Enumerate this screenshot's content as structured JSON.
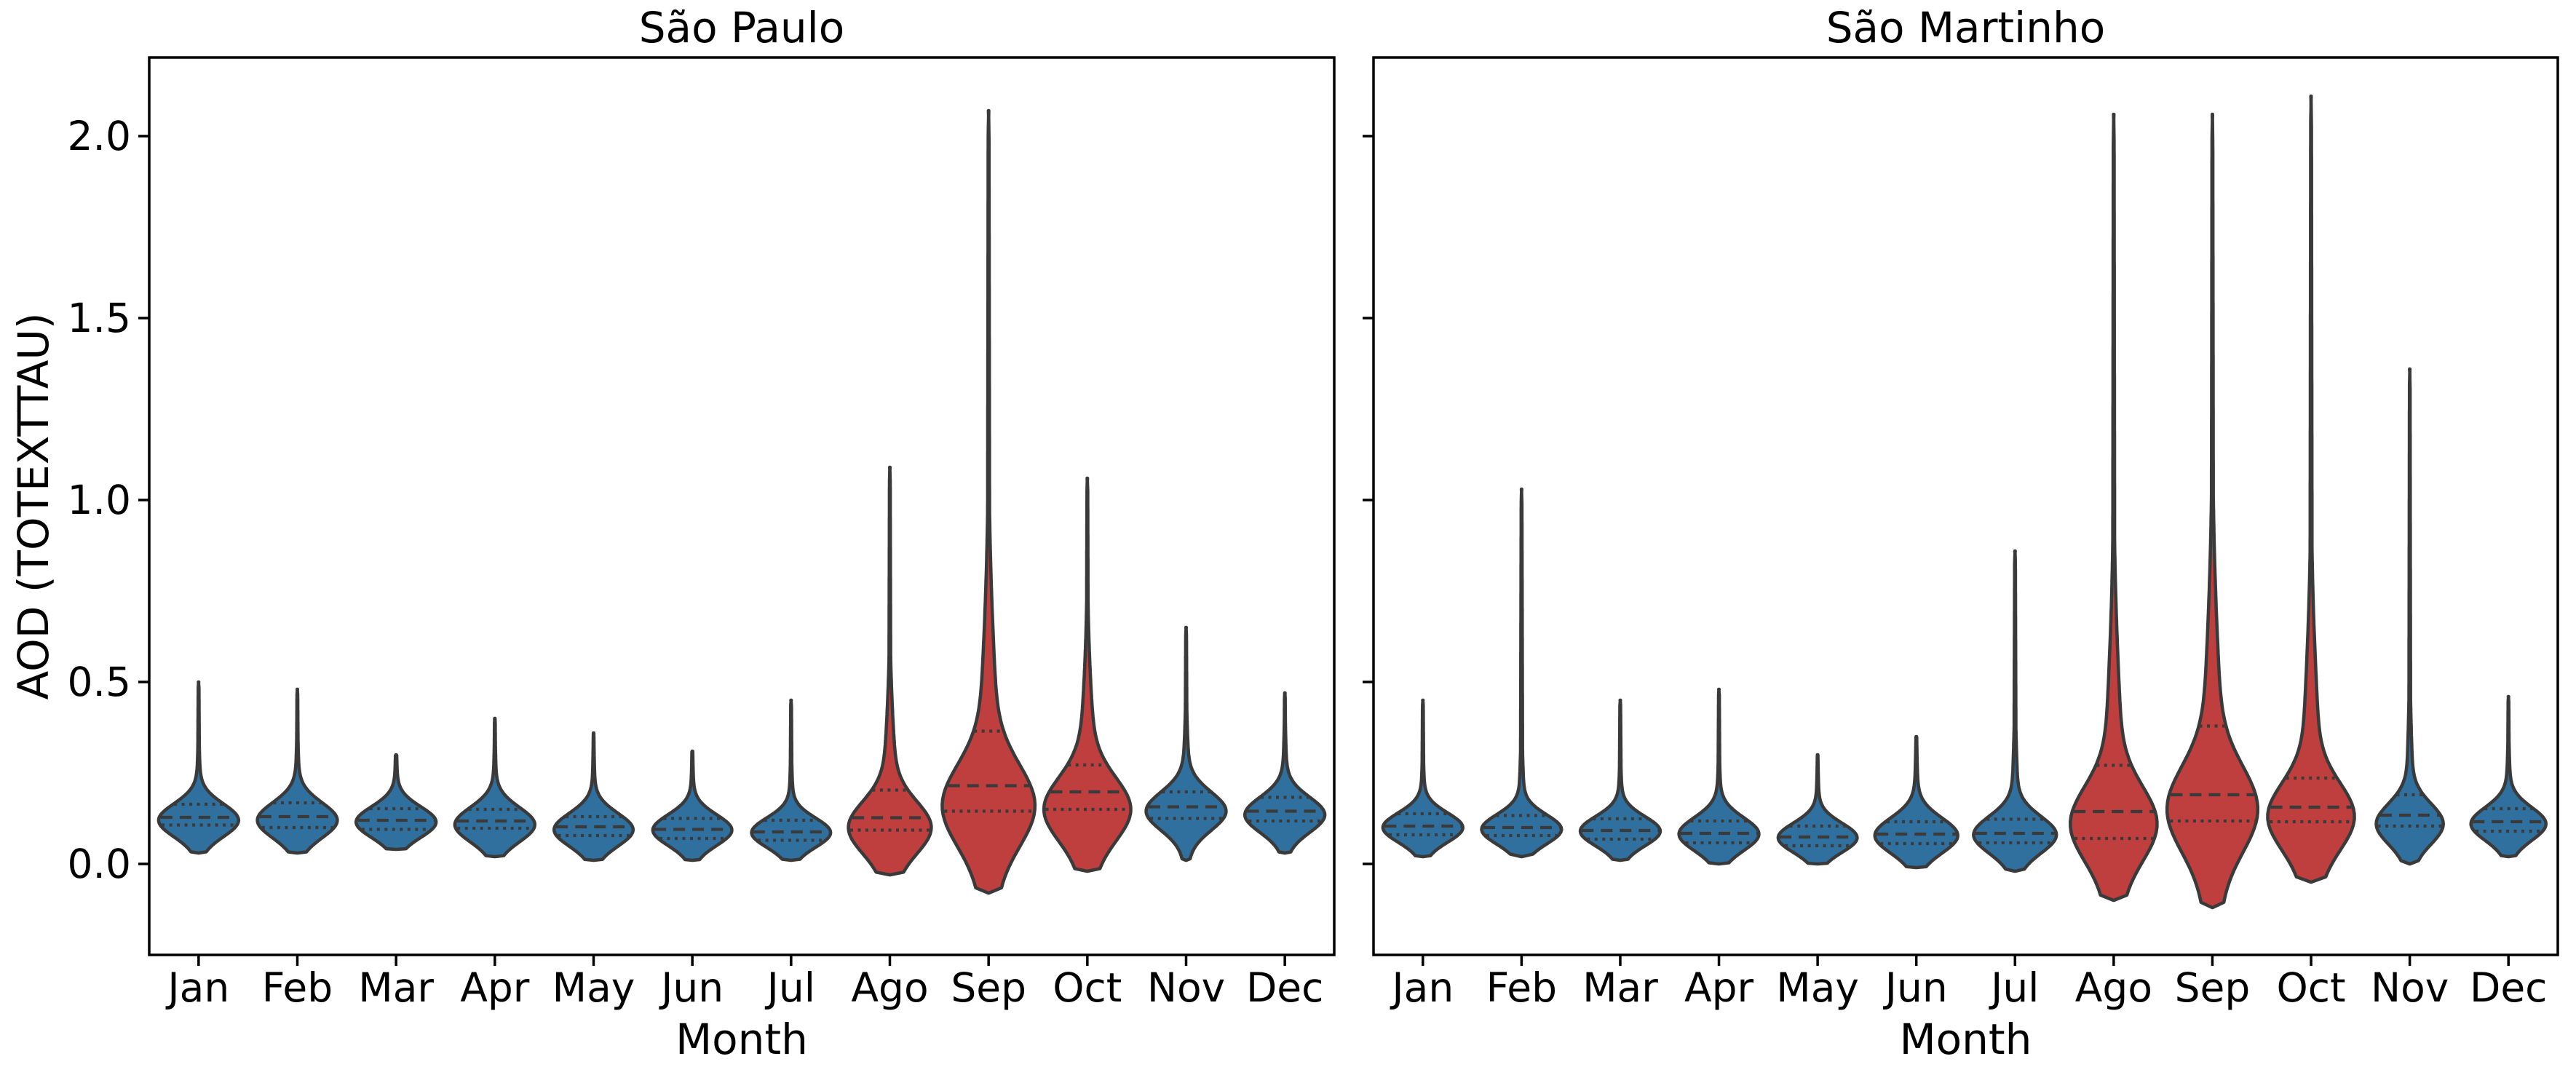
{
  "figure": {
    "ylabel": "AOD (TOTEXTTAU)",
    "xlabel": "Month",
    "ytick_labels": [
      "0.0",
      "0.5",
      "1.0",
      "1.5",
      "2.0"
    ],
    "colors": {
      "regular_violin": "#2f709e",
      "burning_season_violin": "#bf3e3e",
      "violin_outline": "#3a3a3a",
      "axis": "#000000",
      "background": "#ffffff"
    }
  },
  "chart_data": {
    "type": "violin",
    "title": "",
    "xlabel": "Month",
    "ylabel": "AOD (TOTEXTTAU)",
    "categories": [
      "Jan",
      "Feb",
      "Mar",
      "Apr",
      "May",
      "Jun",
      "Jul",
      "Ago",
      "Sep",
      "Oct",
      "Nov",
      "Dec"
    ],
    "ytick_values": [
      0.0,
      0.5,
      1.0,
      1.5,
      2.0
    ],
    "ylim": [
      -0.25,
      2.216
    ],
    "grid": false,
    "inner_style": "quartile-lines (q1 dotted, median dashed, q3 dotted)",
    "subplots": [
      {
        "title": "São Paulo",
        "violins": [
          {
            "month": "Jan",
            "color": "regular",
            "min": 0.03,
            "max": 0.5,
            "mode": 0.12,
            "sigma": 0.045,
            "q1": 0.107,
            "median": 0.128,
            "q3": 0.164,
            "halfwidth": 0.405,
            "tail_amp": 0.06,
            "tail_sigma_mult": 3.0
          },
          {
            "month": "Feb",
            "color": "regular",
            "min": 0.03,
            "max": 0.48,
            "mode": 0.12,
            "sigma": 0.048,
            "q1": 0.1,
            "median": 0.13,
            "q3": 0.168,
            "halfwidth": 0.405,
            "tail_amp": 0.06,
            "tail_sigma_mult": 3.0
          },
          {
            "month": "Mar",
            "color": "regular",
            "min": 0.04,
            "max": 0.3,
            "mode": 0.115,
            "sigma": 0.042,
            "q1": 0.095,
            "median": 0.12,
            "q3": 0.152,
            "halfwidth": 0.405,
            "tail_amp": 0.05,
            "tail_sigma_mult": 3.0
          },
          {
            "month": "Apr",
            "color": "regular",
            "min": 0.02,
            "max": 0.4,
            "mode": 0.108,
            "sigma": 0.047,
            "q1": 0.098,
            "median": 0.118,
            "q3": 0.15,
            "halfwidth": 0.405,
            "tail_amp": 0.05,
            "tail_sigma_mult": 3.0
          },
          {
            "month": "May",
            "color": "regular",
            "min": 0.01,
            "max": 0.36,
            "mode": 0.094,
            "sigma": 0.045,
            "q1": 0.078,
            "median": 0.102,
            "q3": 0.13,
            "halfwidth": 0.4,
            "tail_amp": 0.05,
            "tail_sigma_mult": 3.0
          },
          {
            "month": "Jun",
            "color": "regular",
            "min": 0.01,
            "max": 0.31,
            "mode": 0.093,
            "sigma": 0.042,
            "q1": 0.07,
            "median": 0.095,
            "q3": 0.125,
            "halfwidth": 0.4,
            "tail_amp": 0.05,
            "tail_sigma_mult": 3.0
          },
          {
            "month": "Jul",
            "color": "regular",
            "min": 0.01,
            "max": 0.45,
            "mode": 0.086,
            "sigma": 0.04,
            "q1": 0.065,
            "median": 0.088,
            "q3": 0.12,
            "halfwidth": 0.4,
            "tail_amp": 0.06,
            "tail_sigma_mult": 3.2
          },
          {
            "month": "Ago",
            "color": "burning",
            "min": -0.03,
            "max": 1.09,
            "mode": 0.1,
            "sigma": 0.07,
            "q1": 0.093,
            "median": 0.127,
            "q3": 0.203,
            "halfwidth": 0.42,
            "tail_amp": 0.22,
            "tail_sigma_mult": 3.2
          },
          {
            "month": "Sep",
            "color": "burning",
            "min": -0.08,
            "max": 2.07,
            "mode": 0.16,
            "sigma": 0.11,
            "q1": 0.145,
            "median": 0.215,
            "q3": 0.365,
            "halfwidth": 0.47,
            "tail_amp": 0.28,
            "tail_sigma_mult": 3.4
          },
          {
            "month": "Oct",
            "color": "burning",
            "min": -0.02,
            "max": 1.06,
            "mode": 0.15,
            "sigma": 0.085,
            "q1": 0.15,
            "median": 0.198,
            "q3": 0.272,
            "halfwidth": 0.44,
            "tail_amp": 0.25,
            "tail_sigma_mult": 3.0
          },
          {
            "month": "Nov",
            "color": "regular",
            "min": 0.01,
            "max": 0.65,
            "mode": 0.145,
            "sigma": 0.052,
            "q1": 0.125,
            "median": 0.157,
            "q3": 0.198,
            "halfwidth": 0.405,
            "tail_amp": 0.1,
            "tail_sigma_mult": 3.0
          },
          {
            "month": "Dec",
            "color": "regular",
            "min": 0.03,
            "max": 0.47,
            "mode": 0.135,
            "sigma": 0.048,
            "q1": 0.118,
            "median": 0.145,
            "q3": 0.183,
            "halfwidth": 0.405,
            "tail_amp": 0.07,
            "tail_sigma_mult": 3.0
          }
        ]
      },
      {
        "title": "São Martinho",
        "violins": [
          {
            "month": "Jan",
            "color": "regular",
            "min": 0.02,
            "max": 0.45,
            "mode": 0.1,
            "sigma": 0.04,
            "q1": 0.08,
            "median": 0.104,
            "q3": 0.138,
            "halfwidth": 0.405,
            "tail_amp": 0.06,
            "tail_sigma_mult": 3.0
          },
          {
            "month": "Feb",
            "color": "regular",
            "min": 0.02,
            "max": 1.03,
            "mode": 0.095,
            "sigma": 0.04,
            "q1": 0.078,
            "median": 0.1,
            "q3": 0.133,
            "halfwidth": 0.405,
            "tail_amp": 0.08,
            "tail_sigma_mult": 3.6
          },
          {
            "month": "Mar",
            "color": "regular",
            "min": 0.01,
            "max": 0.45,
            "mode": 0.09,
            "sigma": 0.04,
            "q1": 0.068,
            "median": 0.092,
            "q3": 0.124,
            "halfwidth": 0.405,
            "tail_amp": 0.06,
            "tail_sigma_mult": 3.0
          },
          {
            "month": "Apr",
            "color": "regular",
            "min": 0.0,
            "max": 0.48,
            "mode": 0.082,
            "sigma": 0.045,
            "q1": 0.058,
            "median": 0.084,
            "q3": 0.118,
            "halfwidth": 0.405,
            "tail_amp": 0.06,
            "tail_sigma_mult": 3.0
          },
          {
            "month": "May",
            "color": "regular",
            "min": 0.0,
            "max": 0.3,
            "mode": 0.072,
            "sigma": 0.04,
            "q1": 0.05,
            "median": 0.074,
            "q3": 0.104,
            "halfwidth": 0.4,
            "tail_amp": 0.05,
            "tail_sigma_mult": 3.0
          },
          {
            "month": "Jun",
            "color": "regular",
            "min": -0.01,
            "max": 0.35,
            "mode": 0.078,
            "sigma": 0.048,
            "q1": 0.056,
            "median": 0.082,
            "q3": 0.116,
            "halfwidth": 0.42,
            "tail_amp": 0.06,
            "tail_sigma_mult": 3.0
          },
          {
            "month": "Jul",
            "color": "regular",
            "min": -0.02,
            "max": 0.86,
            "mode": 0.08,
            "sigma": 0.05,
            "q1": 0.058,
            "median": 0.084,
            "q3": 0.123,
            "halfwidth": 0.42,
            "tail_amp": 0.09,
            "tail_sigma_mult": 3.6
          },
          {
            "month": "Ago",
            "color": "burning",
            "min": -0.1,
            "max": 2.06,
            "mode": 0.11,
            "sigma": 0.1,
            "q1": 0.07,
            "median": 0.144,
            "q3": 0.271,
            "halfwidth": 0.44,
            "tail_amp": 0.28,
            "tail_sigma_mult": 3.6
          },
          {
            "month": "Sep",
            "color": "burning",
            "min": -0.12,
            "max": 2.06,
            "mode": 0.15,
            "sigma": 0.115,
            "q1": 0.118,
            "median": 0.19,
            "q3": 0.379,
            "halfwidth": 0.46,
            "tail_amp": 0.3,
            "tail_sigma_mult": 3.4
          },
          {
            "month": "Oct",
            "color": "burning",
            "min": -0.05,
            "max": 2.11,
            "mode": 0.13,
            "sigma": 0.09,
            "q1": 0.116,
            "median": 0.156,
            "q3": 0.236,
            "halfwidth": 0.44,
            "tail_amp": 0.28,
            "tail_sigma_mult": 3.8
          },
          {
            "month": "Nov",
            "color": "regular",
            "min": 0.0,
            "max": 1.36,
            "mode": 0.11,
            "sigma": 0.055,
            "q1": 0.104,
            "median": 0.134,
            "q3": 0.19,
            "halfwidth": 0.34,
            "tail_amp": 0.12,
            "tail_sigma_mult": 3.6
          },
          {
            "month": "Dec",
            "color": "regular",
            "min": 0.02,
            "max": 0.46,
            "mode": 0.11,
            "sigma": 0.045,
            "q1": 0.09,
            "median": 0.116,
            "q3": 0.152,
            "halfwidth": 0.38,
            "tail_amp": 0.07,
            "tail_sigma_mult": 3.0
          }
        ]
      }
    ]
  }
}
